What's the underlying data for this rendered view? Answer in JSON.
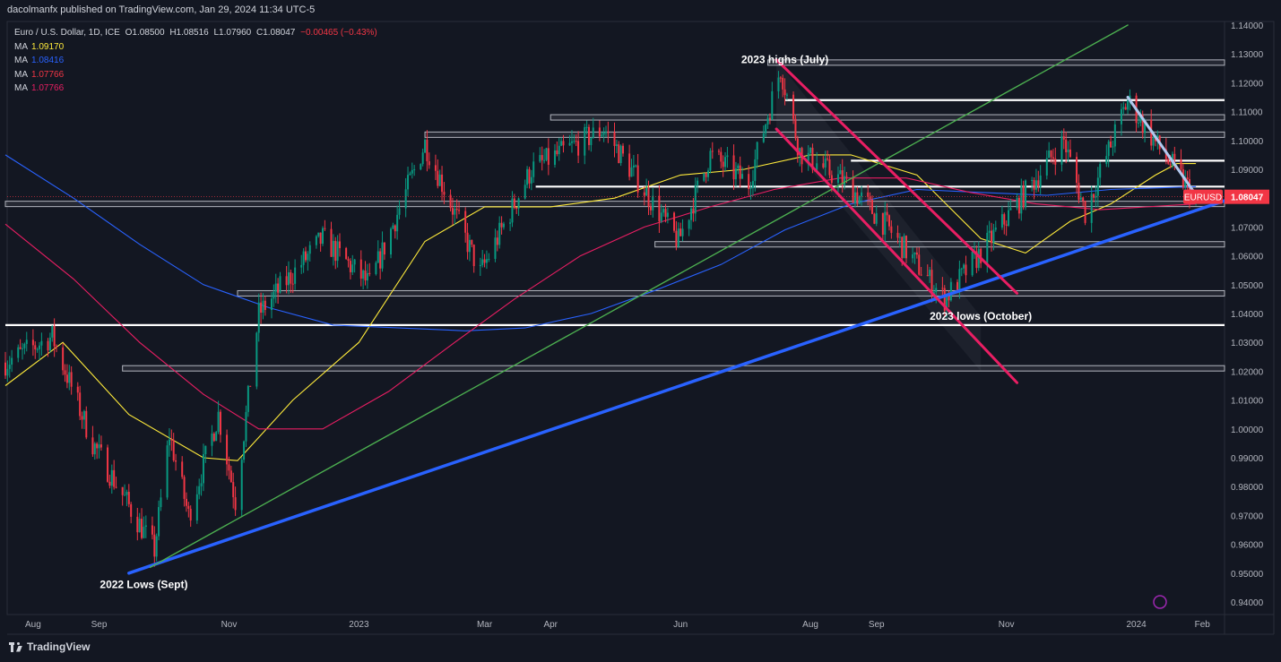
{
  "header": {
    "publish_line": "dacolmanfx published on TradingView.com, Jan 29, 2024 11:34 UTC-5",
    "instrument": "Euro / U.S. Dollar, 1D, ICE",
    "ohlc": {
      "o": "O1.08500",
      "h": "H1.08516",
      "l": "L1.07960",
      "c": "C1.08047",
      "chg": "−0.00465 (−0.43%)"
    },
    "ma": [
      {
        "label": "MA",
        "value": "1.09170",
        "color": "#ffeb3b"
      },
      {
        "label": "MA",
        "value": "1.08416",
        "color": "#2962ff"
      },
      {
        "label": "MA",
        "value": "1.07766",
        "color": "#f23645"
      },
      {
        "label": "MA",
        "value": "1.07766",
        "color": "#e91e63"
      }
    ]
  },
  "watermark": {
    "brand": "TradingView"
  },
  "chart_data": {
    "type": "line",
    "series_kind": "candlestick",
    "symbol": "EURUSD",
    "last_price": "1.08047",
    "price_axis": {
      "min": 0.94,
      "max": 1.14,
      "step": 0.01,
      "tick_labels": [
        "1.14000",
        "1.13000",
        "1.12000",
        "1.11000",
        "1.10000",
        "1.09000",
        "1.08000",
        "1.07000",
        "1.06000",
        "1.05000",
        "1.04000",
        "1.03000",
        "1.02000",
        "1.01000",
        "1.00000",
        "0.99000",
        "0.98000",
        "0.97000",
        "0.96000",
        "0.95000",
        "0.94000"
      ]
    },
    "time_axis": {
      "tick_labels": [
        "Aug",
        "Sep",
        "Nov",
        "2023",
        "Mar",
        "Apr",
        "Jun",
        "Aug",
        "Sep",
        "Nov",
        "2024",
        "Feb"
      ],
      "tick_dates": [
        "2022-08-01",
        "2022-09-01",
        "2022-11-01",
        "2023-01-01",
        "2023-03-01",
        "2023-04-01",
        "2023-06-01",
        "2023-08-01",
        "2023-09-01",
        "2023-11-01",
        "2024-01-01",
        "2024-02-01"
      ]
    },
    "price_path": [
      [
        "2022-07-19",
        1.023
      ],
      [
        "2022-08-10",
        1.032
      ],
      [
        "2022-08-29",
        0.995
      ],
      [
        "2022-09-27",
        0.958
      ],
      [
        "2022-10-04",
        0.998
      ],
      [
        "2022-10-13",
        0.97
      ],
      [
        "2022-10-27",
        1.005
      ],
      [
        "2022-11-04",
        0.975
      ],
      [
        "2022-11-15",
        1.04
      ],
      [
        "2022-12-15",
        1.066
      ],
      [
        "2023-01-06",
        1.05
      ],
      [
        "2023-02-01",
        1.099
      ],
      [
        "2023-02-27",
        1.054
      ],
      [
        "2023-03-23",
        1.09
      ],
      [
        "2023-04-26",
        1.104
      ],
      [
        "2023-05-31",
        1.065
      ],
      [
        "2023-06-15",
        1.095
      ],
      [
        "2023-07-03",
        1.085
      ],
      [
        "2023-07-18",
        1.125
      ],
      [
        "2023-07-27",
        1.096
      ],
      [
        "2023-08-18",
        1.085
      ],
      [
        "2023-09-05",
        1.071
      ],
      [
        "2023-10-03",
        1.045
      ],
      [
        "2023-10-24",
        1.065
      ],
      [
        "2023-11-06",
        1.078
      ],
      [
        "2023-11-28",
        1.1
      ],
      [
        "2023-12-08",
        1.075
      ],
      [
        "2023-12-28",
        1.114
      ],
      [
        "2024-01-11",
        1.098
      ],
      [
        "2024-01-29",
        1.08
      ]
    ],
    "moving_averages": [
      {
        "color": "#ffeb3b",
        "points": [
          [
            "2022-07-19",
            1.015
          ],
          [
            "2022-08-15",
            1.03
          ],
          [
            "2022-09-15",
            1.005
          ],
          [
            "2022-10-20",
            0.99
          ],
          [
            "2022-11-05",
            0.989
          ],
          [
            "2022-12-01",
            1.01
          ],
          [
            "2023-01-01",
            1.03
          ],
          [
            "2023-02-01",
            1.065
          ],
          [
            "2023-03-01",
            1.077
          ],
          [
            "2023-04-01",
            1.077
          ],
          [
            "2023-05-01",
            1.08
          ],
          [
            "2023-06-01",
            1.088
          ],
          [
            "2023-07-01",
            1.09
          ],
          [
            "2023-08-01",
            1.095
          ],
          [
            "2023-08-20",
            1.095
          ],
          [
            "2023-09-20",
            1.088
          ],
          [
            "2023-10-20",
            1.066
          ],
          [
            "2023-11-10",
            1.061
          ],
          [
            "2023-12-01",
            1.072
          ],
          [
            "2023-12-20",
            1.078
          ],
          [
            "2024-01-10",
            1.088
          ],
          [
            "2024-01-20",
            1.092
          ],
          [
            "2024-01-29",
            1.092
          ]
        ]
      },
      {
        "color": "#2962ff",
        "points": [
          [
            "2022-07-19",
            1.095
          ],
          [
            "2022-08-20",
            1.08
          ],
          [
            "2022-09-20",
            1.064
          ],
          [
            "2022-10-20",
            1.05
          ],
          [
            "2022-11-20",
            1.042
          ],
          [
            "2022-12-20",
            1.036
          ],
          [
            "2023-01-20",
            1.035
          ],
          [
            "2023-02-20",
            1.034
          ],
          [
            "2023-03-20",
            1.035
          ],
          [
            "2023-04-20",
            1.04
          ],
          [
            "2023-05-20",
            1.048
          ],
          [
            "2023-06-20",
            1.057
          ],
          [
            "2023-07-20",
            1.069
          ],
          [
            "2023-08-20",
            1.078
          ],
          [
            "2023-09-20",
            1.083
          ],
          [
            "2023-10-20",
            1.082
          ],
          [
            "2023-11-20",
            1.081
          ],
          [
            "2023-12-20",
            1.083
          ],
          [
            "2024-01-29",
            1.084
          ]
        ]
      },
      {
        "color": "#e91e63",
        "points": [
          [
            "2022-07-19",
            1.071
          ],
          [
            "2022-08-20",
            1.052
          ],
          [
            "2022-09-20",
            1.03
          ],
          [
            "2022-10-20",
            1.012
          ],
          [
            "2022-11-15",
            1.0
          ],
          [
            "2022-12-15",
            1.0
          ],
          [
            "2023-01-15",
            1.013
          ],
          [
            "2023-02-15",
            1.03
          ],
          [
            "2023-03-15",
            1.045
          ],
          [
            "2023-04-15",
            1.06
          ],
          [
            "2023-05-15",
            1.07
          ],
          [
            "2023-06-15",
            1.077
          ],
          [
            "2023-07-15",
            1.083
          ],
          [
            "2023-08-15",
            1.087
          ],
          [
            "2023-09-15",
            1.087
          ],
          [
            "2023-10-15",
            1.082
          ],
          [
            "2023-11-15",
            1.078
          ],
          [
            "2023-12-15",
            1.076
          ],
          [
            "2024-01-29",
            1.078
          ]
        ]
      }
    ],
    "horizontal_levels": [
      {
        "price": 1.127,
        "from": "2023-07-12"
      },
      {
        "price": 1.114,
        "from": "2023-07-20",
        "bold": true
      },
      {
        "price": 1.108,
        "from": "2023-04-01"
      },
      {
        "price": 1.102,
        "from": "2023-02-01"
      },
      {
        "price": 1.093,
        "from": "2023-08-20",
        "bold": true
      },
      {
        "price": 1.084,
        "from": "2023-03-25",
        "bold": true
      },
      {
        "price": 1.078,
        "from": "2022-07-19"
      },
      {
        "price": 1.064,
        "from": "2023-05-20"
      },
      {
        "price": 1.047,
        "from": "2022-11-05"
      },
      {
        "price": 1.036,
        "from": "2022-07-19",
        "bold": true
      },
      {
        "price": 1.021,
        "from": "2022-09-12"
      }
    ],
    "trendlines": [
      {
        "color": "#2962ff",
        "from": [
          "2022-09-15",
          0.95
        ],
        "to": [
          "2024-02-15",
          1.08
        ]
      },
      {
        "color": "#4caf50",
        "from": [
          "2022-09-25",
          0.952
        ],
        "to": [
          "2023-12-28",
          1.14
        ]
      },
      {
        "color": "#e91e63",
        "from": [
          "2023-07-16",
          1.128
        ],
        "to": [
          "2023-11-06",
          1.047
        ]
      },
      {
        "color": "#e91e63",
        "from": [
          "2023-07-16",
          1.104
        ],
        "to": [
          "2023-11-06",
          1.016
        ]
      },
      {
        "color": "#b2c8ee",
        "from": [
          "2023-12-28",
          1.115
        ],
        "to": [
          "2024-01-31",
          1.079
        ]
      }
    ],
    "annotations": [
      {
        "text": "2023 highs (July)",
        "date": "2023-07-20",
        "price": 1.128
      },
      {
        "text": "2023 lows (October)",
        "date": "2023-10-20",
        "price": 1.039
      },
      {
        "text": "2022 Lows (Sept)",
        "date": "2022-09-22",
        "price": 0.946
      }
    ]
  }
}
